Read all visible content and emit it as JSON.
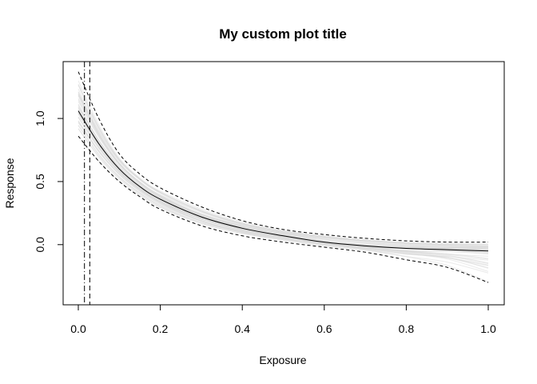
{
  "chart_data": {
    "type": "line",
    "title": "My custom plot title",
    "xlabel": "Exposure",
    "ylabel": "Response",
    "xlim": [
      0.0,
      1.0
    ],
    "ylim": [
      -0.35,
      1.4
    ],
    "x_ticks": [
      0.0,
      0.2,
      0.4,
      0.6,
      0.8,
      1.0
    ],
    "x_tick_labels": [
      "0.0",
      "0.2",
      "0.4",
      "0.6",
      "0.8",
      "1.0"
    ],
    "y_ticks": [
      0.0,
      0.5,
      1.0
    ],
    "y_tick_labels": [
      "0.0",
      "0.5",
      "1.0"
    ],
    "grid": false,
    "legend": "none",
    "vertical_lines": [
      {
        "x": 0.015,
        "style": "dotdash"
      },
      {
        "x": 0.028,
        "style": "dashed"
      }
    ],
    "series": [
      {
        "role": "mean",
        "style": "solid",
        "color": "#000000",
        "x": [
          0.0,
          0.05,
          0.1,
          0.15,
          0.2,
          0.3,
          0.4,
          0.5,
          0.6,
          0.7,
          0.8,
          0.9,
          1.0
        ],
        "y": [
          1.06,
          0.8,
          0.6,
          0.46,
          0.36,
          0.22,
          0.13,
          0.07,
          0.02,
          -0.01,
          -0.03,
          -0.04,
          -0.05
        ]
      },
      {
        "role": "upper",
        "style": "dashed",
        "color": "#000000",
        "x": [
          0.0,
          0.05,
          0.1,
          0.15,
          0.2,
          0.3,
          0.4,
          0.5,
          0.6,
          0.7,
          0.8,
          0.9,
          1.0
        ],
        "y": [
          1.37,
          1.0,
          0.72,
          0.56,
          0.45,
          0.3,
          0.19,
          0.12,
          0.08,
          0.05,
          0.03,
          0.02,
          0.02
        ]
      },
      {
        "role": "lower",
        "style": "dashed",
        "color": "#000000",
        "x": [
          0.0,
          0.05,
          0.1,
          0.15,
          0.2,
          0.3,
          0.4,
          0.5,
          0.6,
          0.7,
          0.8,
          0.9,
          1.0
        ],
        "y": [
          0.86,
          0.66,
          0.5,
          0.38,
          0.28,
          0.15,
          0.07,
          0.02,
          -0.02,
          -0.06,
          -0.12,
          -0.18,
          -0.3
        ]
      }
    ],
    "sample_curves": {
      "color": "#d9d9d9",
      "count": 40,
      "x": [
        0.0,
        0.05,
        0.1,
        0.15,
        0.2,
        0.3,
        0.4,
        0.5,
        0.6,
        0.7,
        0.8,
        0.9,
        1.0
      ],
      "band_lower": [
        0.86,
        0.66,
        0.5,
        0.38,
        0.28,
        0.15,
        0.07,
        0.02,
        -0.02,
        -0.06,
        -0.12,
        -0.18,
        -0.3
      ],
      "band_upper": [
        1.37,
        1.0,
        0.72,
        0.56,
        0.45,
        0.3,
        0.19,
        0.12,
        0.08,
        0.05,
        0.03,
        0.02,
        0.02
      ]
    }
  }
}
